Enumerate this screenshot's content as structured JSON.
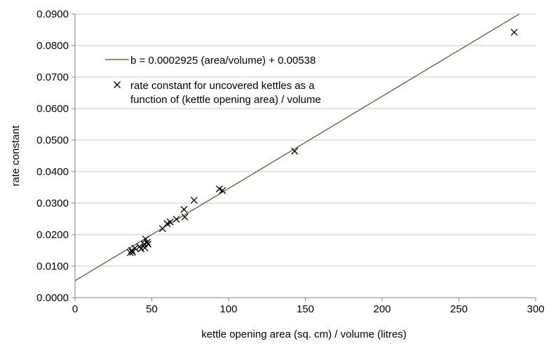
{
  "chart_data": {
    "type": "scatter",
    "xlabel": "kettle opening area (sq. cm) / volume (litres)",
    "ylabel": "rate constant",
    "xlim": [
      0,
      300
    ],
    "ylim": [
      0,
      0.09
    ],
    "xticks": [
      "0",
      "50",
      "100",
      "150",
      "200",
      "250",
      "300"
    ],
    "yticks": [
      "0.0000",
      "0.0100",
      "0.0200",
      "0.0300",
      "0.0400",
      "0.0500",
      "0.0600",
      "0.0700",
      "0.0800",
      "0.0900"
    ],
    "grid": "horizontal",
    "legend_position": "top-left",
    "colors": {
      "fit_line": "#3a5f1e",
      "marker": "#000000",
      "gridline": "#c8c8c8",
      "axis": "#808080"
    },
    "series": [
      {
        "name": "rate constant for uncovered kettles as a function of (kettle opening area) / volume",
        "legend_lines": [
          "rate constant for uncovered kettles as a",
          "function of (kettle opening area) / volume"
        ],
        "kind": "scatter",
        "marker": "x",
        "points": [
          [
            36,
            0.0143
          ],
          [
            37,
            0.015
          ],
          [
            37.5,
            0.0144
          ],
          [
            39,
            0.0157
          ],
          [
            42,
            0.0162
          ],
          [
            43,
            0.0155
          ],
          [
            45,
            0.017
          ],
          [
            45.5,
            0.0158
          ],
          [
            46,
            0.0186
          ],
          [
            47,
            0.0176
          ],
          [
            47.5,
            0.017
          ],
          [
            57,
            0.0219
          ],
          [
            60,
            0.0235
          ],
          [
            62,
            0.024
          ],
          [
            66,
            0.0249
          ],
          [
            71,
            0.028
          ],
          [
            71.5,
            0.0256
          ],
          [
            77.5,
            0.0309
          ],
          [
            94,
            0.0345
          ],
          [
            96,
            0.034
          ],
          [
            143,
            0.0465
          ],
          [
            286,
            0.0842
          ]
        ]
      },
      {
        "name": "b = 0.0002925 (area/volume) + 0.00538",
        "kind": "line",
        "slope": 0.0002925,
        "intercept": 0.00538
      }
    ]
  }
}
